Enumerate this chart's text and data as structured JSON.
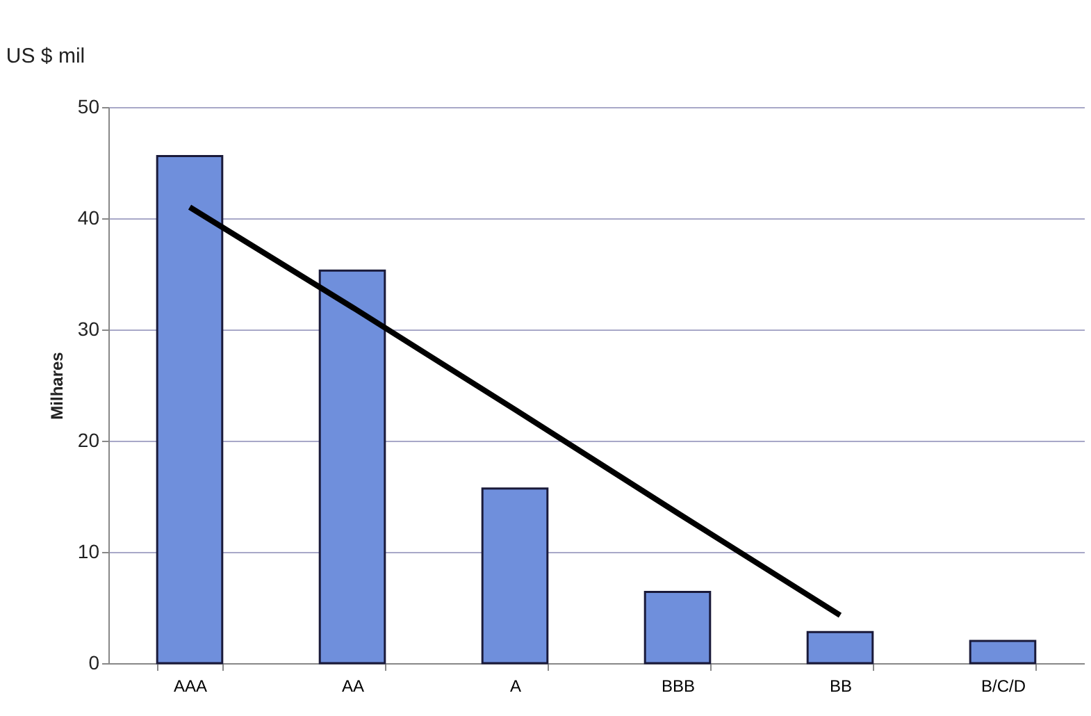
{
  "chart_data": {
    "type": "bar",
    "title": "US $ mil",
    "ylabel": "Milhares",
    "categories": [
      "AAA",
      "AA",
      "A",
      "BBB",
      "BB",
      "B/C/D"
    ],
    "series": [
      {
        "color": "#6f8fdc",
        "values": [
          45.6,
          35.3,
          15.7,
          6.4,
          2.8,
          2.0
        ]
      },
      {
        "type": "line",
        "color": "#000000",
        "x": [
          "AAA",
          "AA",
          "A",
          "BBB",
          "BB",
          "B/C/D"
        ],
        "values": [
          41.0,
          32.0,
          22.8,
          13.5,
          4.3,
          null
        ]
      }
    ],
    "ylim": [
      0,
      50
    ],
    "yticks": [
      0,
      10,
      20,
      30,
      40,
      50
    ],
    "grid": "y"
  }
}
